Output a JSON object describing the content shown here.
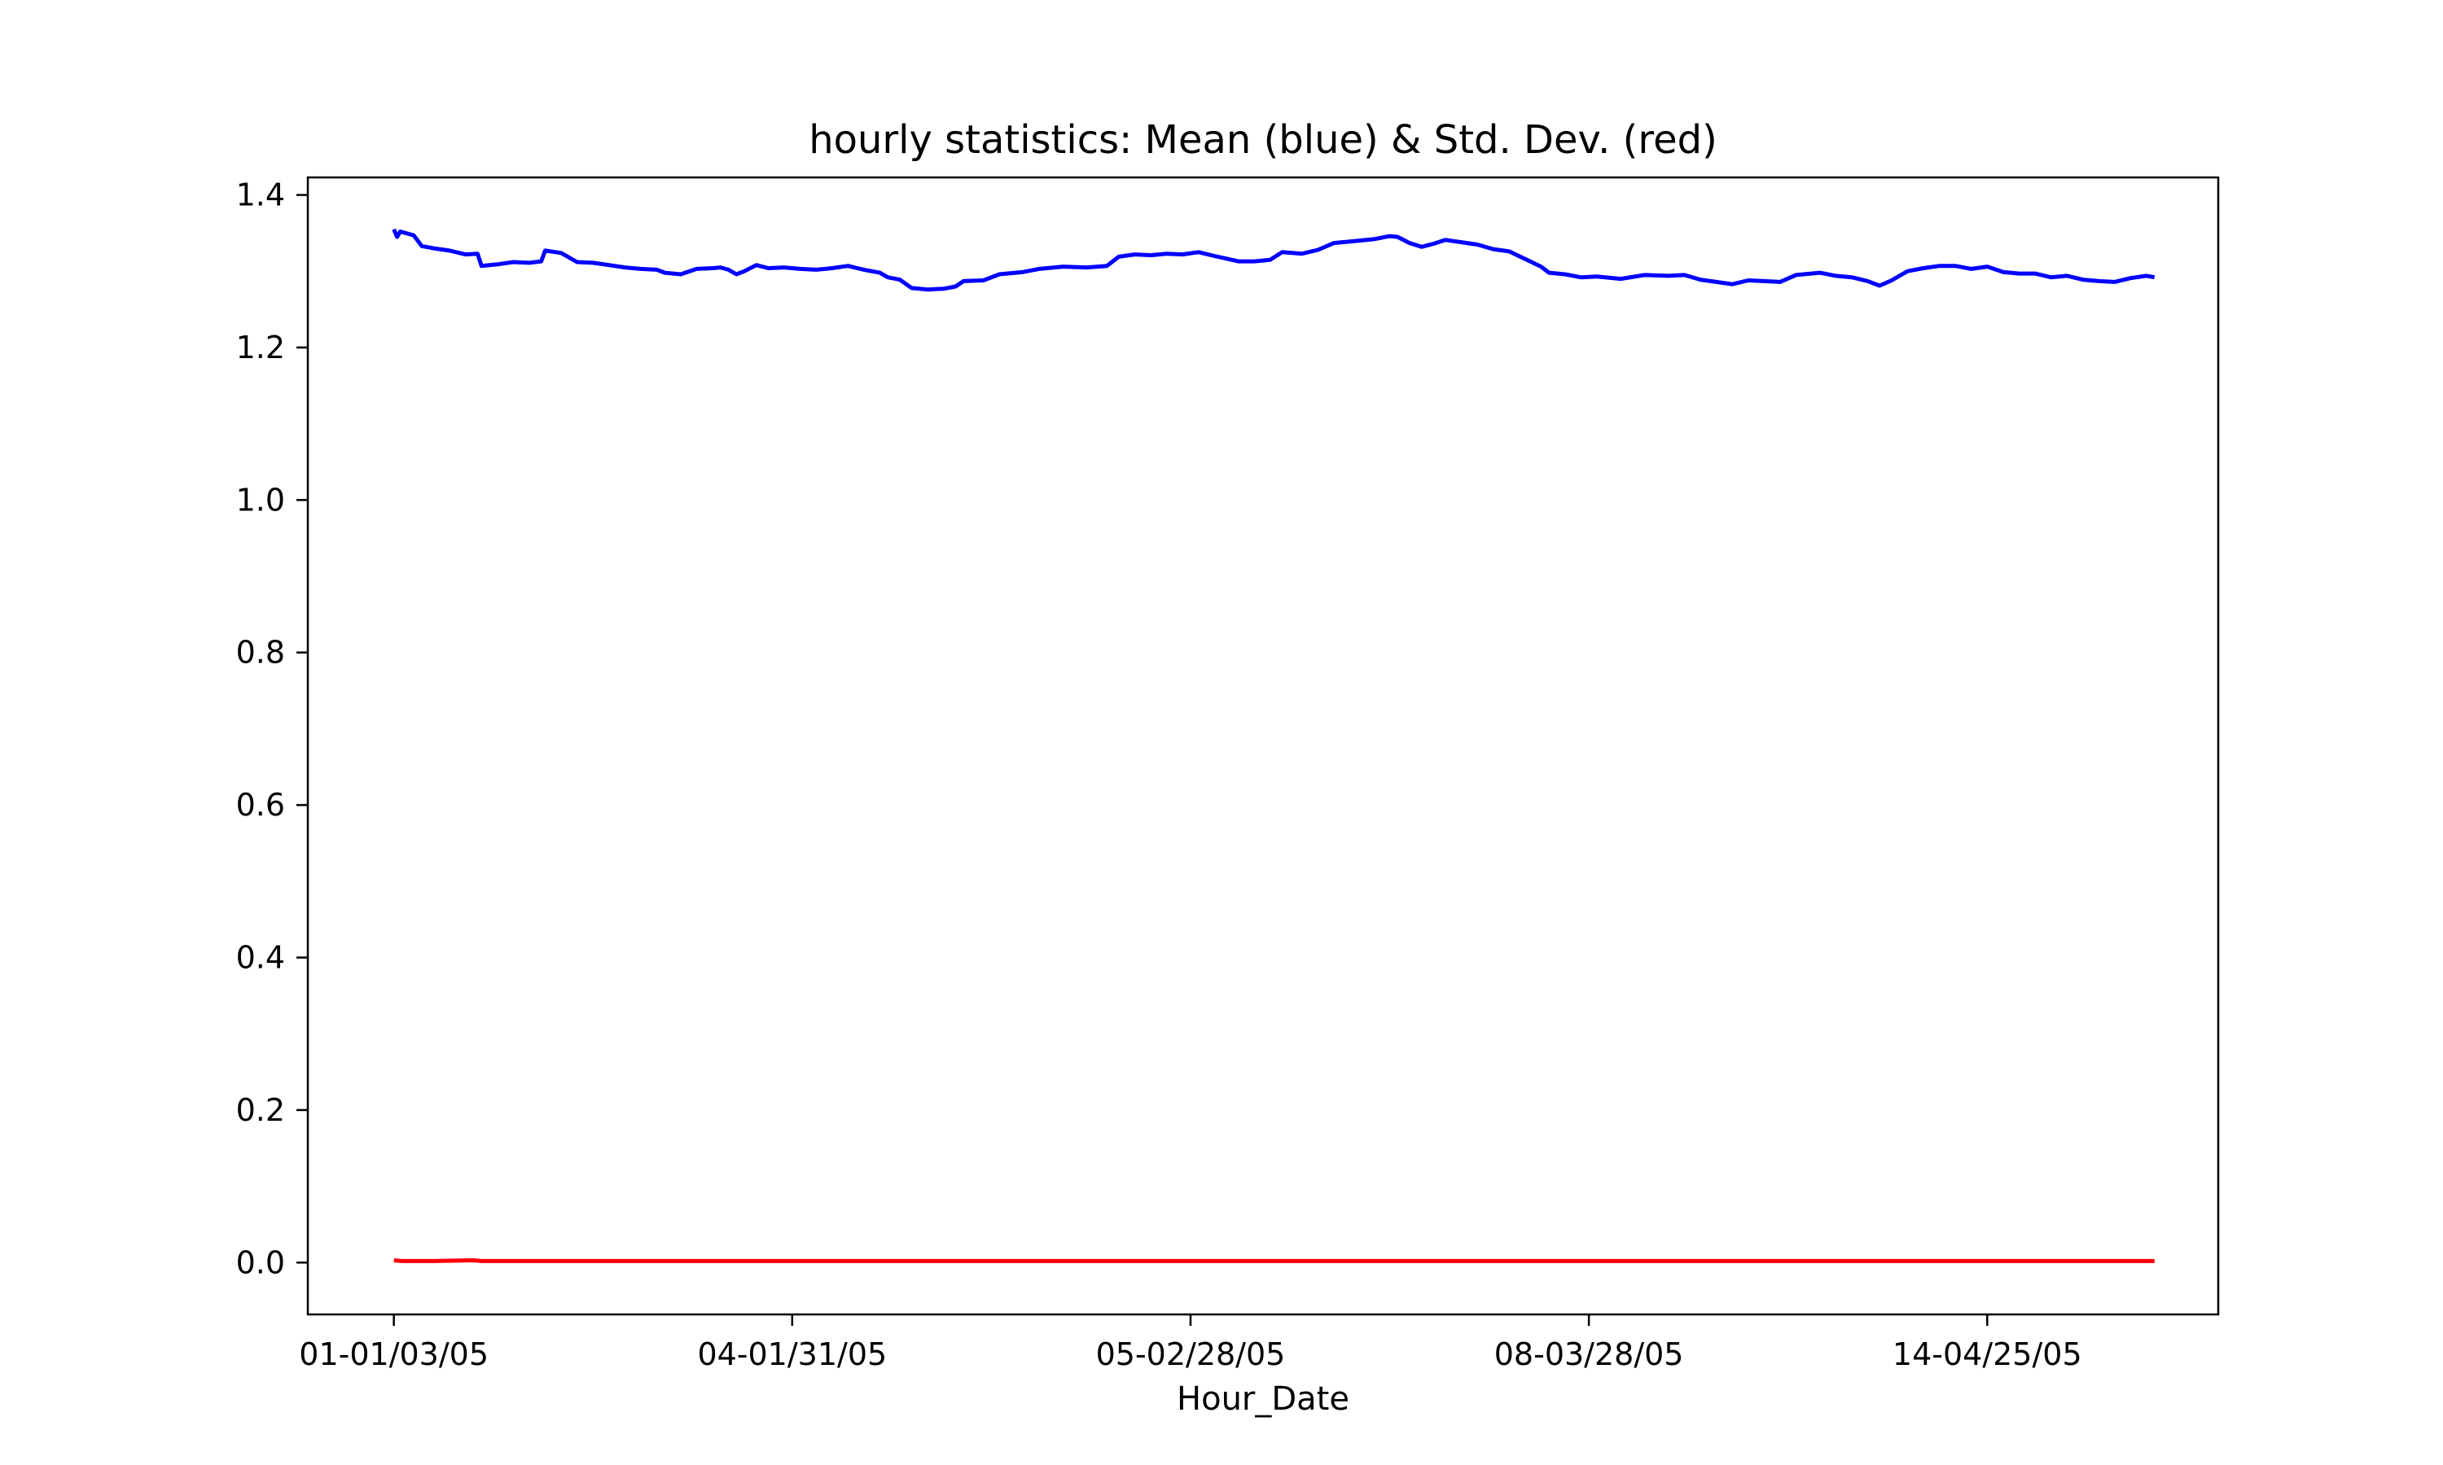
{
  "chart_data": {
    "type": "line",
    "title": "hourly statistics: Mean (blue) & Std. Dev. (red)",
    "xlabel": "Hour_Date",
    "ylabel": "",
    "ylim": [
      -0.068,
      1.423
    ],
    "xlim": [
      -0.108,
      2.29
    ],
    "grid": false,
    "legend": "none",
    "x_ticks": [
      {
        "value": 0,
        "label": "01-01/03/05"
      },
      {
        "value": 0.5,
        "label": "04-01/31/05"
      },
      {
        "value": 1.0,
        "label": "05-02/28/05"
      },
      {
        "value": 1.5,
        "label": "08-03/28/05"
      },
      {
        "value": 2.0,
        "label": "14-04/25/05"
      }
    ],
    "y_ticks": [
      {
        "value": 0.0,
        "label": "0.0"
      },
      {
        "value": 0.2,
        "label": "0.2"
      },
      {
        "value": 0.4,
        "label": "0.4"
      },
      {
        "value": 0.6,
        "label": "0.6"
      },
      {
        "value": 0.8,
        "label": "0.8"
      },
      {
        "value": 1.0,
        "label": "1.0"
      },
      {
        "value": 1.2,
        "label": "1.2"
      },
      {
        "value": 1.4,
        "label": "1.4"
      }
    ],
    "series": [
      {
        "color": "#0000ff",
        "points": [
          [
            0.0,
            1.355
          ],
          [
            0.004,
            1.345
          ],
          [
            0.008,
            1.352
          ],
          [
            0.015,
            1.35
          ],
          [
            0.025,
            1.347
          ],
          [
            0.035,
            1.333
          ],
          [
            0.05,
            1.33
          ],
          [
            0.07,
            1.327
          ],
          [
            0.09,
            1.322
          ],
          [
            0.105,
            1.323
          ],
          [
            0.11,
            1.307
          ],
          [
            0.13,
            1.309
          ],
          [
            0.15,
            1.312
          ],
          [
            0.17,
            1.311
          ],
          [
            0.185,
            1.313
          ],
          [
            0.19,
            1.327
          ],
          [
            0.21,
            1.324
          ],
          [
            0.23,
            1.312
          ],
          [
            0.25,
            1.311
          ],
          [
            0.27,
            1.308
          ],
          [
            0.29,
            1.305
          ],
          [
            0.31,
            1.303
          ],
          [
            0.33,
            1.302
          ],
          [
            0.34,
            1.298
          ],
          [
            0.36,
            1.296
          ],
          [
            0.38,
            1.303
          ],
          [
            0.4,
            1.304
          ],
          [
            0.41,
            1.305
          ],
          [
            0.42,
            1.302
          ],
          [
            0.43,
            1.296
          ],
          [
            0.44,
            1.3
          ],
          [
            0.455,
            1.308
          ],
          [
            0.47,
            1.304
          ],
          [
            0.49,
            1.305
          ],
          [
            0.51,
            1.303
          ],
          [
            0.53,
            1.302
          ],
          [
            0.55,
            1.304
          ],
          [
            0.57,
            1.307
          ],
          [
            0.59,
            1.302
          ],
          [
            0.61,
            1.298
          ],
          [
            0.62,
            1.292
          ],
          [
            0.635,
            1.289
          ],
          [
            0.65,
            1.278
          ],
          [
            0.67,
            1.276
          ],
          [
            0.69,
            1.277
          ],
          [
            0.705,
            1.28
          ],
          [
            0.715,
            1.287
          ],
          [
            0.74,
            1.288
          ],
          [
            0.76,
            1.296
          ],
          [
            0.79,
            1.299
          ],
          [
            0.81,
            1.303
          ],
          [
            0.84,
            1.306
          ],
          [
            0.87,
            1.305
          ],
          [
            0.895,
            1.307
          ],
          [
            0.91,
            1.319
          ],
          [
            0.93,
            1.322
          ],
          [
            0.95,
            1.321
          ],
          [
            0.97,
            1.323
          ],
          [
            0.99,
            1.322
          ],
          [
            1.01,
            1.325
          ],
          [
            1.03,
            1.32
          ],
          [
            1.06,
            1.313
          ],
          [
            1.08,
            1.313
          ],
          [
            1.1,
            1.315
          ],
          [
            1.115,
            1.325
          ],
          [
            1.14,
            1.323
          ],
          [
            1.16,
            1.328
          ],
          [
            1.18,
            1.337
          ],
          [
            1.2,
            1.339
          ],
          [
            1.23,
            1.342
          ],
          [
            1.25,
            1.346
          ],
          [
            1.26,
            1.345
          ],
          [
            1.275,
            1.337
          ],
          [
            1.29,
            1.332
          ],
          [
            1.305,
            1.336
          ],
          [
            1.32,
            1.341
          ],
          [
            1.34,
            1.338
          ],
          [
            1.36,
            1.335
          ],
          [
            1.38,
            1.329
          ],
          [
            1.4,
            1.326
          ],
          [
            1.42,
            1.316
          ],
          [
            1.44,
            1.306
          ],
          [
            1.45,
            1.298
          ],
          [
            1.47,
            1.296
          ],
          [
            1.49,
            1.292
          ],
          [
            1.51,
            1.293
          ],
          [
            1.54,
            1.29
          ],
          [
            1.57,
            1.295
          ],
          [
            1.6,
            1.294
          ],
          [
            1.62,
            1.295
          ],
          [
            1.64,
            1.289
          ],
          [
            1.66,
            1.286
          ],
          [
            1.68,
            1.283
          ],
          [
            1.7,
            1.288
          ],
          [
            1.72,
            1.287
          ],
          [
            1.74,
            1.286
          ],
          [
            1.76,
            1.295
          ],
          [
            1.79,
            1.298
          ],
          [
            1.81,
            1.294
          ],
          [
            1.83,
            1.292
          ],
          [
            1.85,
            1.287
          ],
          [
            1.865,
            1.281
          ],
          [
            1.88,
            1.288
          ],
          [
            1.9,
            1.3
          ],
          [
            1.92,
            1.304
          ],
          [
            1.94,
            1.307
          ],
          [
            1.96,
            1.307
          ],
          [
            1.98,
            1.303
          ],
          [
            2.0,
            1.306
          ],
          [
            2.02,
            1.299
          ],
          [
            2.04,
            1.297
          ],
          [
            2.06,
            1.297
          ],
          [
            2.08,
            1.292
          ],
          [
            2.1,
            1.294
          ],
          [
            2.12,
            1.289
          ],
          [
            2.14,
            1.287
          ],
          [
            2.16,
            1.286
          ],
          [
            2.18,
            1.291
          ],
          [
            2.2,
            1.294
          ],
          [
            2.21,
            1.292
          ]
        ]
      },
      {
        "color": "#ff0000",
        "points": [
          [
            0.0,
            0.003
          ],
          [
            0.01,
            0.002
          ],
          [
            0.05,
            0.002
          ],
          [
            0.1,
            0.003
          ],
          [
            0.11,
            0.002
          ],
          [
            0.2,
            0.002
          ],
          [
            0.3,
            0.002
          ],
          [
            0.4,
            0.002
          ],
          [
            0.5,
            0.002
          ],
          [
            0.6,
            0.002
          ],
          [
            0.7,
            0.002
          ],
          [
            0.8,
            0.002
          ],
          [
            0.9,
            0.002
          ],
          [
            1.0,
            0.002
          ],
          [
            1.1,
            0.002
          ],
          [
            1.2,
            0.002
          ],
          [
            1.3,
            0.002
          ],
          [
            1.4,
            0.002
          ],
          [
            1.5,
            0.002
          ],
          [
            1.6,
            0.002
          ],
          [
            1.7,
            0.002
          ],
          [
            1.8,
            0.002
          ],
          [
            1.9,
            0.002
          ],
          [
            2.0,
            0.002
          ],
          [
            2.1,
            0.002
          ],
          [
            2.21,
            0.002
          ]
        ]
      }
    ]
  }
}
